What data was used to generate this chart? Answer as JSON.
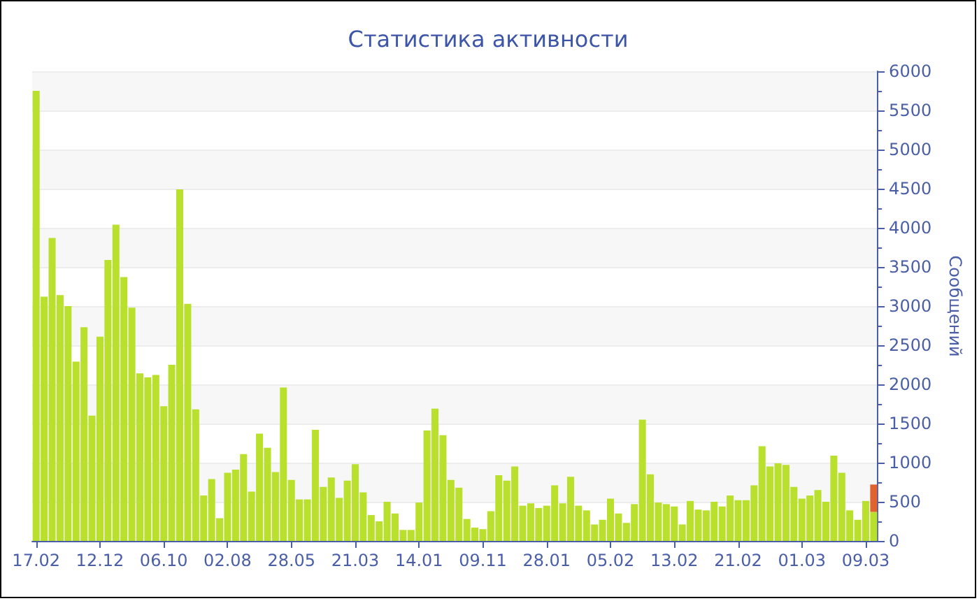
{
  "chart_data": {
    "type": "bar",
    "title": "Статистика активности",
    "ylabel": "Сообщений",
    "categories": [
      "17.02",
      null,
      null,
      null,
      null,
      null,
      null,
      null,
      "12.12",
      null,
      null,
      null,
      null,
      null,
      null,
      null,
      "06.10",
      null,
      null,
      null,
      null,
      null,
      null,
      null,
      "02.08",
      null,
      null,
      null,
      null,
      null,
      null,
      null,
      "28.05",
      null,
      null,
      null,
      null,
      null,
      null,
      null,
      "21.03",
      null,
      null,
      null,
      null,
      null,
      null,
      null,
      "14.01",
      null,
      null,
      null,
      null,
      null,
      null,
      null,
      "09.11",
      null,
      null,
      null,
      null,
      null,
      null,
      null,
      "28.01",
      null,
      null,
      null,
      null,
      null,
      null,
      null,
      "05.02",
      null,
      null,
      null,
      null,
      null,
      null,
      null,
      "13.02",
      null,
      null,
      null,
      null,
      null,
      null,
      null,
      "21.02",
      null,
      null,
      null,
      null,
      null,
      null,
      null,
      "01.03",
      null,
      null,
      null,
      null,
      null,
      null,
      null,
      "09.03",
      null
    ],
    "stacked": true,
    "series": [
      {
        "color": "#b8e02c",
        "values": [
          5750,
          3120,
          3870,
          3140,
          3000,
          2290,
          2730,
          1600,
          2610,
          3590,
          4040,
          3370,
          2980,
          2140,
          2090,
          2120,
          1720,
          2250,
          4490,
          3030,
          1680,
          580,
          790,
          290,
          870,
          910,
          1110,
          630,
          1370,
          1190,
          880,
          1960,
          780,
          530,
          530,
          1420,
          690,
          810,
          550,
          770,
          980,
          620,
          330,
          250,
          500,
          350,
          140,
          140,
          490,
          1410,
          1690,
          1350,
          780,
          680,
          280,
          170,
          150,
          380,
          840,
          770,
          950,
          450,
          480,
          420,
          450,
          710,
          480,
          820,
          450,
          390,
          210,
          270,
          540,
          350,
          230,
          470,
          1550,
          850,
          490,
          470,
          440,
          210,
          510,
          400,
          390,
          500,
          440,
          580,
          520,
          520,
          710,
          1210,
          950,
          990,
          970,
          690,
          540,
          580,
          650,
          500,
          1090,
          870,
          390,
          270,
          510,
          370
        ]
      },
      {
        "color": "#e0622e",
        "values": [
          null,
          null,
          null,
          null,
          null,
          null,
          null,
          null,
          null,
          null,
          null,
          null,
          null,
          null,
          null,
          null,
          null,
          null,
          null,
          null,
          null,
          null,
          null,
          null,
          null,
          null,
          null,
          null,
          null,
          null,
          null,
          null,
          null,
          null,
          null,
          null,
          null,
          null,
          null,
          null,
          null,
          null,
          null,
          null,
          null,
          null,
          null,
          null,
          null,
          null,
          null,
          null,
          null,
          null,
          null,
          null,
          null,
          null,
          null,
          null,
          null,
          null,
          null,
          null,
          null,
          null,
          null,
          null,
          null,
          null,
          null,
          null,
          null,
          null,
          null,
          null,
          null,
          null,
          null,
          null,
          null,
          null,
          null,
          null,
          null,
          null,
          null,
          null,
          null,
          null,
          null,
          null,
          null,
          null,
          null,
          null,
          null,
          null,
          null,
          null,
          null,
          null,
          null,
          null,
          null,
          350
        ]
      }
    ],
    "ylim": [
      0,
      6000
    ],
    "yticks": [
      0,
      500,
      1000,
      1500,
      2000,
      2500,
      3000,
      3500,
      4000,
      4500,
      5000,
      5500,
      6000
    ],
    "grid": "y"
  }
}
